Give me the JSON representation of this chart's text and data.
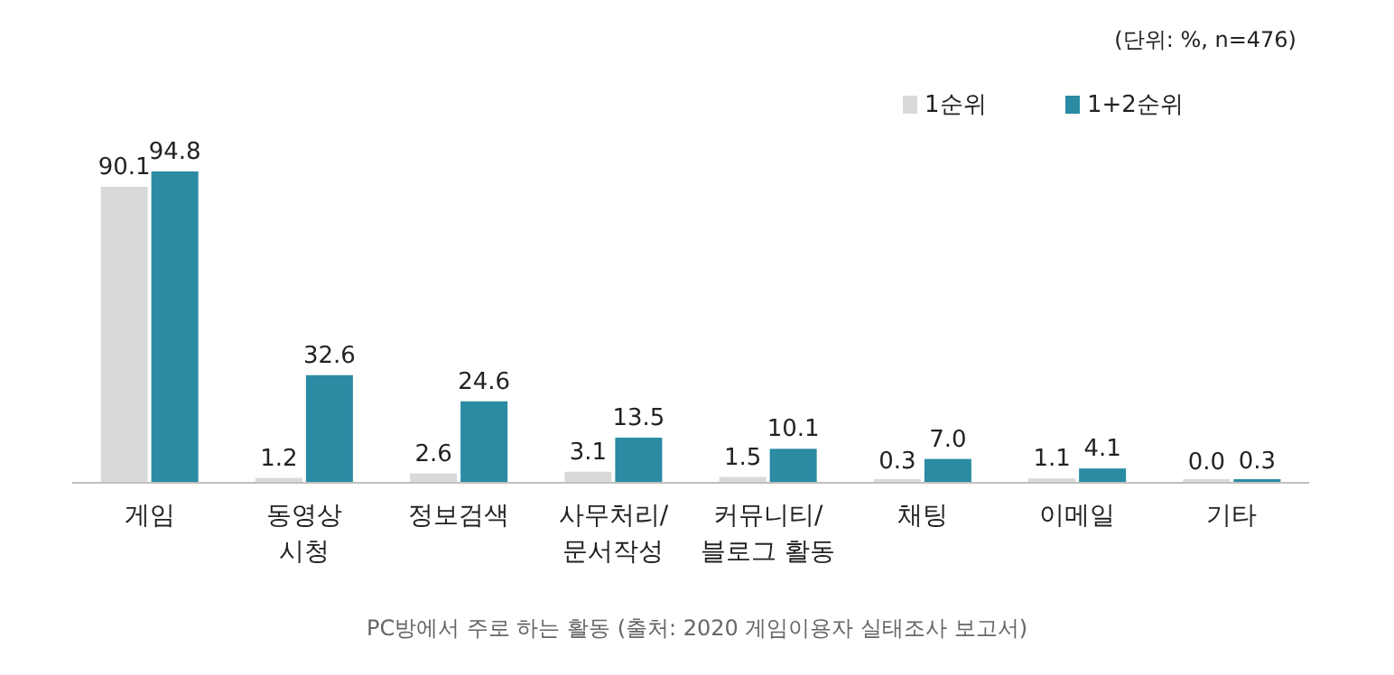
{
  "chart_data": {
    "type": "bar",
    "categories": [
      "게임",
      "동영상 시청",
      "정보검색",
      "사무처리/문서작성",
      "커뮤니티/블로그 활동",
      "채팅",
      "이메일",
      "기타"
    ],
    "series": [
      {
        "name": "1순위",
        "color": "#d9d9d9",
        "values": [
          90.1,
          1.2,
          2.6,
          3.1,
          1.5,
          0.3,
          1.1,
          0.0
        ],
        "value_labels": [
          "90.1",
          "1.2",
          "2.6",
          "3.1",
          "1.5",
          "0.3",
          "1.1",
          "0.0"
        ]
      },
      {
        "name": "1+2순위",
        "color": "#2a8ba3",
        "values": [
          94.8,
          32.6,
          24.6,
          13.5,
          10.1,
          7.0,
          4.1,
          0.3
        ],
        "value_labels": [
          "94.8",
          "32.6",
          "24.6",
          "13.5",
          "10.1",
          "7.0",
          "4.1",
          "0.3"
        ]
      }
    ],
    "legend": "top right",
    "annotations": [
      "(단위: %, n=476)",
      "PC방에서 주로 하는 활동 (출처: 2020 게임이용자 실태조사 보고서)"
    ]
  }
}
